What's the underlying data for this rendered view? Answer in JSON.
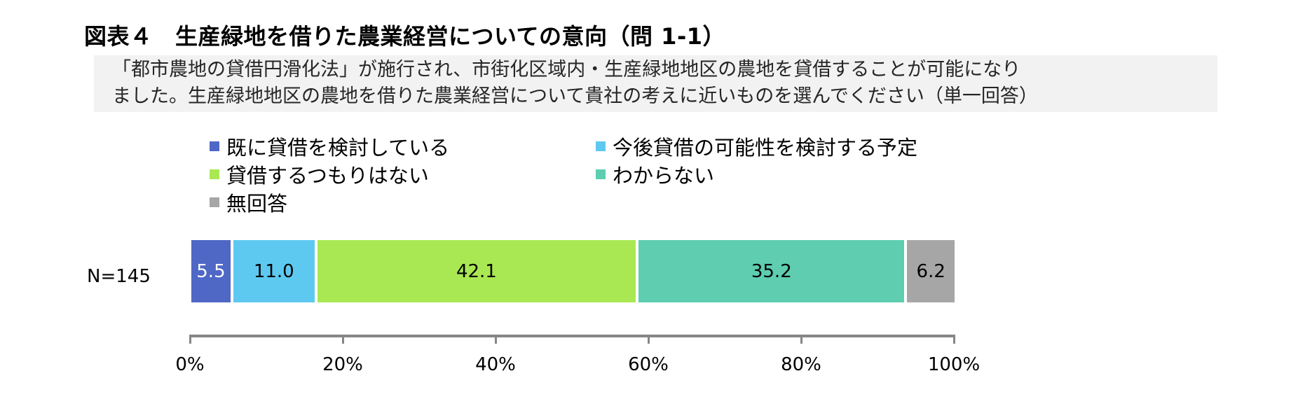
{
  "title": "図表４　生産緑地を借りた農業経営についての意向（問 1-1）",
  "question": {
    "line1": "「都市農地の貸借円滑化法」が施行され、市街化区域内・生産緑地地区の農地を貸借することが可能になり",
    "line2": "ました。生産緑地地区の農地を借りた農業経営について貴社の考えに近いものを選んでください（単一回答）"
  },
  "legend": [
    {
      "label": "既に貸借を検討している",
      "color": "#4f67c5"
    },
    {
      "label": "今後貸借の可能性を検討する予定",
      "color": "#5ec9f0"
    },
    {
      "label": "貸借するつもりはない",
      "color": "#a9e853"
    },
    {
      "label": "わからない",
      "color": "#5ecdb0"
    },
    {
      "label": "無回答",
      "color": "#a6a6a6"
    }
  ],
  "row_label": "N=145",
  "segments": [
    {
      "value": 5.5,
      "label": "5.5",
      "color": "#4f67c5",
      "text_color": "#ffffff"
    },
    {
      "value": 11.0,
      "label": "11.0",
      "color": "#5ec9f0",
      "text_color": "#000000"
    },
    {
      "value": 42.1,
      "label": "42.1",
      "color": "#a9e853",
      "text_color": "#000000"
    },
    {
      "value": 35.2,
      "label": "35.2",
      "color": "#5ecdb0",
      "text_color": "#000000"
    },
    {
      "value": 6.2,
      "label": "6.2",
      "color": "#a6a6a6",
      "text_color": "#000000"
    }
  ],
  "axis": {
    "ticks": [
      "0%",
      "20%",
      "40%",
      "60%",
      "80%",
      "100%"
    ]
  },
  "chart_data": {
    "type": "bar",
    "orientation": "horizontal",
    "stacked": true,
    "title": "図表４　生産緑地を借りた農業経営についての意向（問 1-1）",
    "subtitle": "「都市農地の貸借円滑化法」が施行され、市街化区域内・生産緑地地区の農地を貸借することが可能になりました。生産緑地地区の農地を借りた農業経営について貴社の考えに近いものを選んでください（単一回答）",
    "categories": [
      "N=145"
    ],
    "series": [
      {
        "name": "既に貸借を検討している",
        "values": [
          5.5
        ],
        "color": "#4f67c5"
      },
      {
        "name": "今後貸借の可能性を検討する予定",
        "values": [
          11.0
        ],
        "color": "#5ec9f0"
      },
      {
        "name": "貸借するつもりはない",
        "values": [
          42.1
        ],
        "color": "#a9e853"
      },
      {
        "name": "わからない",
        "values": [
          35.2
        ],
        "color": "#5ecdb0"
      },
      {
        "name": "無回答",
        "values": [
          6.2
        ],
        "color": "#a6a6a6"
      }
    ],
    "xlabel": "",
    "ylabel": "",
    "xlim": [
      0,
      100
    ],
    "x_ticks": [
      "0%",
      "20%",
      "40%",
      "60%",
      "80%",
      "100%"
    ],
    "grid": false,
    "legend_position": "top",
    "data_labels": true
  }
}
